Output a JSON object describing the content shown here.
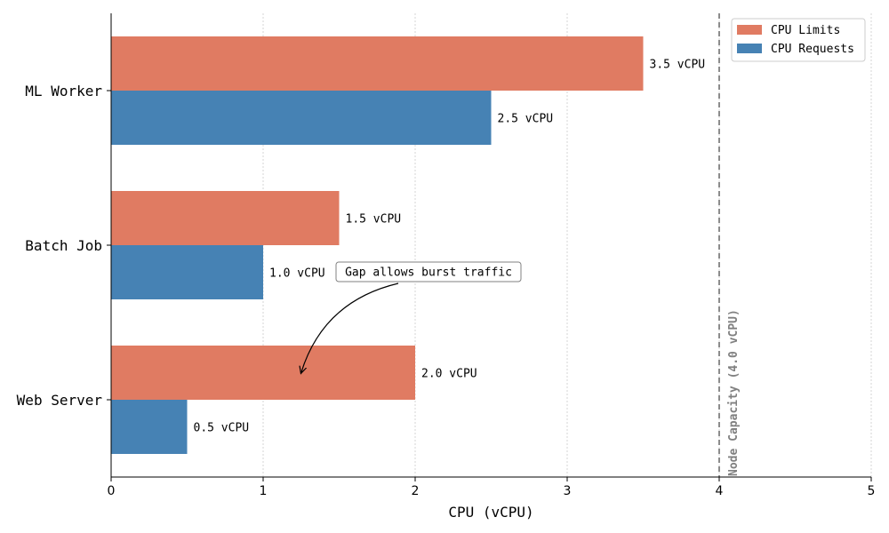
{
  "chart_data": {
    "type": "bar",
    "orientation": "horizontal",
    "categories": [
      "Web Server",
      "Batch Job",
      "ML Worker"
    ],
    "series": [
      {
        "name": "CPU Limits",
        "values": [
          2.0,
          1.5,
          3.5
        ],
        "color": "#e07b62"
      },
      {
        "name": "CPU Requests",
        "values": [
          0.5,
          1.0,
          2.5
        ],
        "color": "#4682b4"
      }
    ],
    "value_labels": {
      "CPU Limits": [
        "2.0 vCPU",
        "1.5 vCPU",
        "3.5 vCPU"
      ],
      "CPU Requests": [
        "0.5 vCPU",
        "1.0 vCPU",
        "2.5 vCPU"
      ]
    },
    "xlabel": "CPU (vCPU)",
    "ylabel": "",
    "title": "",
    "xlim": [
      0,
      5
    ],
    "xticks": [
      "0",
      "1",
      "2",
      "3",
      "4",
      "5"
    ],
    "grid": "vertical dotted",
    "legend": "top-right",
    "reference_line": {
      "x": 4,
      "label": "Node Capacity (4.0 vCPU)",
      "color": "#808080"
    },
    "annotation": {
      "text": "Gap allows burst traffic",
      "arrow_to_value": 1.25,
      "arrow_to_category": "Web Server"
    }
  }
}
